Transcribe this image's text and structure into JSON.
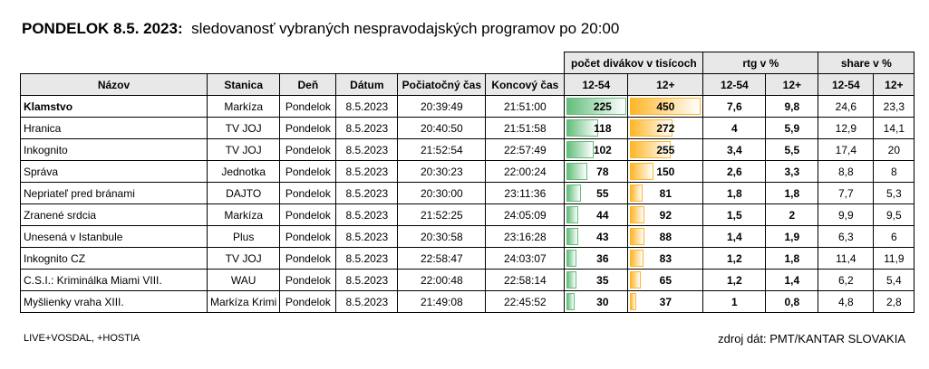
{
  "title": {
    "bold": "PONDELOK 8.5. 2023:",
    "rest": "sledovanosť vybraných nespravodajských programov po 20:00"
  },
  "groups": {
    "viewers": "počet divákov v tisícoch",
    "rtg": "rtg v %",
    "share": "share v %"
  },
  "headers": [
    "Názov",
    "Stanica",
    "Deň",
    "Dátum",
    "Počiatočný čas",
    "Koncový čas",
    "12-54",
    "12+",
    "12-54",
    "12+",
    "12-54",
    "12+"
  ],
  "rows": [
    [
      "Klamstvo",
      "Markíza",
      "Pondelok",
      "8.5.2023",
      "20:39:49",
      "21:51:00",
      "225",
      "450",
      "7,6",
      "9,8",
      "24,6",
      "23,3"
    ],
    [
      "Hranica",
      "TV JOJ",
      "Pondelok",
      "8.5.2023",
      "20:40:50",
      "21:51:58",
      "118",
      "272",
      "4",
      "5,9",
      "12,9",
      "14,1"
    ],
    [
      "Inkognito",
      "TV JOJ",
      "Pondelok",
      "8.5.2023",
      "21:52:54",
      "22:57:49",
      "102",
      "255",
      "3,4",
      "5,5",
      "17,4",
      "20"
    ],
    [
      "Správa",
      "Jednotka",
      "Pondelok",
      "8.5.2023",
      "20:30:23",
      "22:00:24",
      "78",
      "150",
      "2,6",
      "3,3",
      "8,8",
      "8"
    ],
    [
      "Nepriateľ pred bránami",
      "DAJTO",
      "Pondelok",
      "8.5.2023",
      "20:30:00",
      "23:11:36",
      "55",
      "81",
      "1,8",
      "1,8",
      "7,7",
      "5,3"
    ],
    [
      "Zranené srdcia",
      "Markíza",
      "Pondelok",
      "8.5.2023",
      "21:52:25",
      "24:05:09",
      "44",
      "92",
      "1,5",
      "2",
      "9,9",
      "9,5"
    ],
    [
      "Unesená v Istanbule",
      "Plus",
      "Pondelok",
      "8.5.2023",
      "20:30:58",
      "23:16:28",
      "43",
      "88",
      "1,4",
      "1,9",
      "6,3",
      "6"
    ],
    [
      "Inkognito CZ",
      "TV JOJ",
      "Pondelok",
      "8.5.2023",
      "22:58:47",
      "24:03:07",
      "36",
      "83",
      "1,2",
      "1,8",
      "11,4",
      "11,9"
    ],
    [
      "C.S.I.: Kriminálka Miami VIII.",
      "WAU",
      "Pondelok",
      "8.5.2023",
      "22:00:48",
      "22:58:14",
      "35",
      "65",
      "1,2",
      "1,4",
      "6,2",
      "5,4"
    ],
    [
      "Myšlienky vraha XIII.",
      "Markíza Krimi",
      "Pondelok",
      "8.5.2023",
      "21:49:08",
      "22:45:52",
      "30",
      "37",
      "1",
      "0,8",
      "4,8",
      "2,8"
    ]
  ],
  "footer": {
    "left": "LIVE+VOSDAL, +HOSTIA",
    "right": "zdroj dát: PMT/KANTAR SLOVAKIA"
  }
}
